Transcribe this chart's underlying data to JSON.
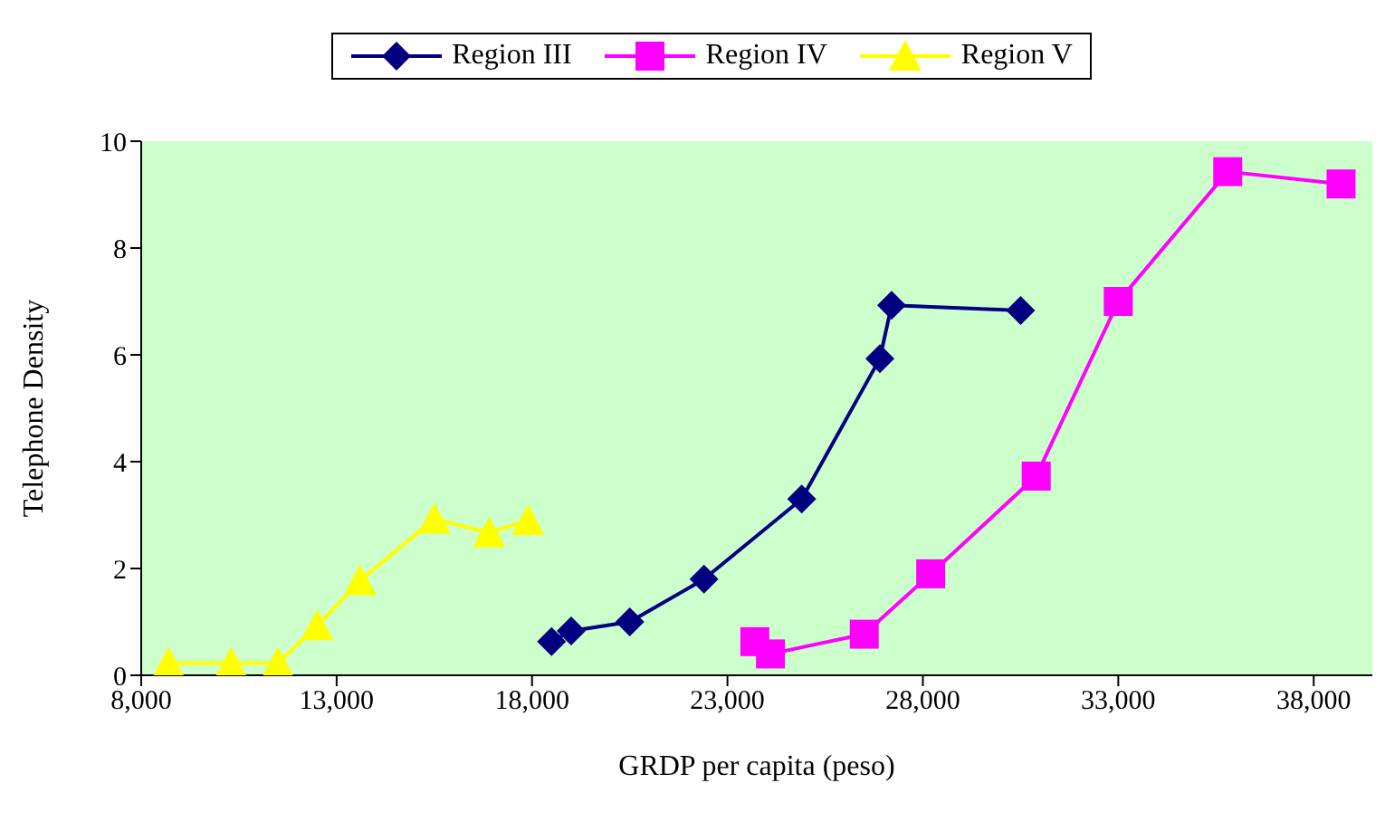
{
  "chart_data": {
    "type": "line",
    "xlabel": "GRDP per capita (peso)",
    "ylabel": "Telephone Density",
    "xlim": [
      8000,
      39500
    ],
    "xticks": [
      {
        "value": 8000,
        "label": "8,000"
      },
      {
        "value": 13000,
        "label": "13,000"
      },
      {
        "value": 18000,
        "label": "18,000"
      },
      {
        "value": 23000,
        "label": "23,000"
      },
      {
        "value": 28000,
        "label": "28,000"
      },
      {
        "value": 33000,
        "label": "33,000"
      },
      {
        "value": 38000,
        "label": "38,000"
      }
    ],
    "ylim": [
      0,
      10
    ],
    "yticks": [
      0,
      2,
      4,
      6,
      8,
      10
    ],
    "grid": false,
    "legend": "top",
    "line_style": "solid",
    "series": [
      {
        "name": "Region III",
        "color": "#000080",
        "marker": "diamond",
        "x": [
          18500,
          19000,
          20500,
          22400,
          24900,
          26900,
          27200,
          30500
        ],
        "values": [
          0.63,
          0.83,
          1.0,
          1.8,
          3.3,
          5.93,
          6.93,
          6.83
        ]
      },
      {
        "name": "Region IV",
        "color": "#ff00ff",
        "marker": "square",
        "x": [
          23700,
          24100,
          26500,
          28200,
          30900,
          33000,
          35800,
          38700
        ],
        "values": [
          0.63,
          0.4,
          0.77,
          1.9,
          3.73,
          7.0,
          9.43,
          9.2
        ]
      },
      {
        "name": "Region V",
        "color": "#ffff00",
        "marker": "triangle",
        "x": [
          8700,
          10300,
          11500,
          12500,
          13600,
          15500,
          16900,
          17900
        ],
        "values": [
          0.23,
          0.23,
          0.23,
          0.93,
          1.77,
          2.93,
          2.67,
          2.9
        ]
      }
    ]
  }
}
